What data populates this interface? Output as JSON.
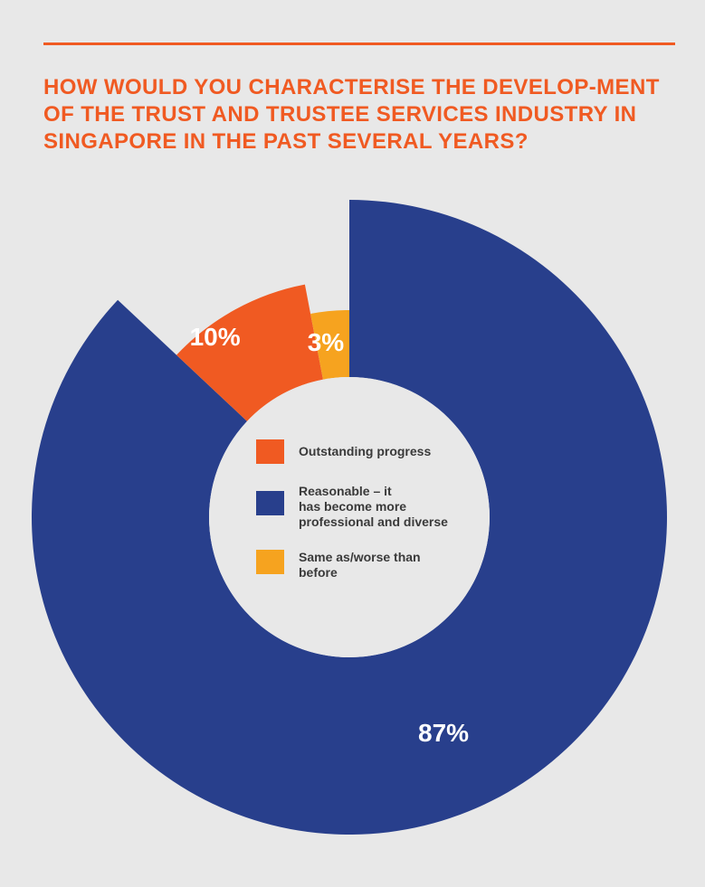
{
  "header": {
    "title": "HOW WOULD YOU CHARACTERISE THE DEVELOP-MENT OF THE TRUST AND TRUSTEE SERVICES INDUSTRY IN SINGAPORE IN THE PAST SEVERAL YEARS?"
  },
  "colors": {
    "accent": "#f05a22",
    "background": "#e8e8e8",
    "navy": "#283f8c",
    "orange": "#f05a22",
    "yellow": "#f6a31f"
  },
  "chart_data": {
    "type": "pie",
    "variant": "donut with varying outer radius",
    "series": [
      {
        "name": "Reasonable – it\nhas become more\nprofessional and diverse",
        "value": 87,
        "label": "87%",
        "color": "#283f8c"
      },
      {
        "name": "Outstanding progress",
        "value": 10,
        "label": "10%",
        "color": "#f05a22"
      },
      {
        "name": "Same as/worse than\nbefore",
        "value": 3,
        "label": "3%",
        "color": "#f6a31f"
      }
    ],
    "legend": [
      {
        "label": "Outstanding progress",
        "color": "#f05a22"
      },
      {
        "label": "Reasonable – it\nhas become more\nprofessional and diverse",
        "color": "#283f8c"
      },
      {
        "label": "Same as/worse than\nbefore",
        "color": "#f6a31f"
      }
    ],
    "legend_position": "center"
  }
}
